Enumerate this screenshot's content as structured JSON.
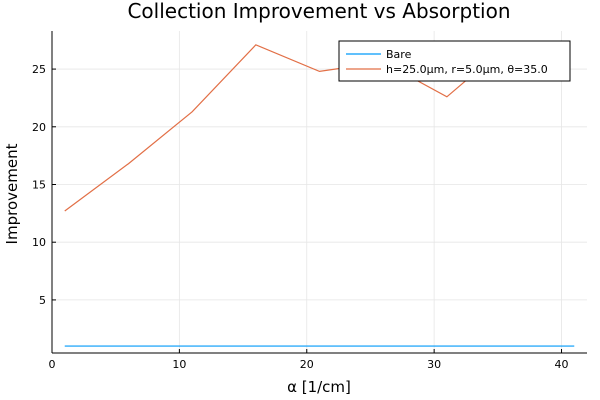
{
  "chart_data": {
    "type": "line",
    "title": "Collection Improvement vs Absorption",
    "xlabel": "α [1/cm]",
    "ylabel": "Improvement",
    "xlim": [
      0,
      42
    ],
    "ylim": [
      0.4,
      28.3
    ],
    "xticks": [
      0,
      10,
      20,
      30,
      40
    ],
    "yticks": [
      5,
      10,
      15,
      20,
      25
    ],
    "grid": true,
    "legend_position": "top-right",
    "series": [
      {
        "name": "Bare",
        "color": "#009AFA",
        "x": [
          1,
          6,
          11,
          16,
          21,
          26,
          31,
          36,
          41
        ],
        "y": [
          1.0,
          1.0,
          1.0,
          1.0,
          1.0,
          1.0,
          1.0,
          1.0,
          1.0
        ]
      },
      {
        "name": "h=25.0μm, r=5.0μm, θ=35.0",
        "color": "#E26F46",
        "x": [
          1,
          6,
          11,
          16,
          21,
          26,
          31,
          36
        ],
        "y": [
          12.7,
          16.8,
          21.3,
          27.1,
          24.8,
          25.6,
          22.6,
          27.3
        ]
      }
    ]
  }
}
